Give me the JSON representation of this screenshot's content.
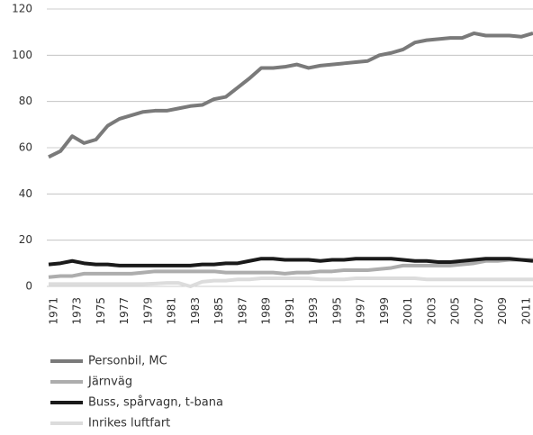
{
  "chart_data": {
    "type": "line",
    "x": [
      1971,
      1972,
      1973,
      1974,
      1975,
      1976,
      1977,
      1978,
      1979,
      1980,
      1981,
      1982,
      1983,
      1984,
      1985,
      1986,
      1987,
      1988,
      1989,
      1990,
      1991,
      1992,
      1993,
      1994,
      1995,
      1996,
      1997,
      1998,
      1999,
      2000,
      2001,
      2002,
      2003,
      2004,
      2005,
      2006,
      2007,
      2008,
      2009,
      2010,
      2011,
      2012
    ],
    "xlim": [
      1971,
      2012
    ],
    "xticks": [
      1971,
      1973,
      1975,
      1977,
      1979,
      1981,
      1983,
      1985,
      1987,
      1989,
      1991,
      1993,
      1995,
      1997,
      1999,
      2001,
      2003,
      2005,
      2007,
      2009,
      2011
    ],
    "ylim": [
      0,
      120
    ],
    "yticks": [
      0,
      20,
      40,
      60,
      80,
      100,
      120
    ],
    "grid": true,
    "legend": "bottom-left",
    "series": [
      {
        "name": "Personbil, MC",
        "color": "#7a7a7a",
        "values": [
          56,
          58.5,
          65,
          62,
          63.5,
          69.5,
          72.5,
          74,
          75.5,
          76,
          76,
          77,
          78,
          78.5,
          81,
          82,
          86,
          90,
          94.5,
          94.5,
          95,
          96,
          94.5,
          95.5,
          96,
          96.5,
          97,
          97.5,
          100,
          101,
          102.5,
          105.5,
          106.5,
          107,
          107.5,
          107.5,
          109.5,
          108.5,
          108.5,
          108.5,
          108,
          109.5
        ]
      },
      {
        "name": "Järnväg",
        "color": "#adadad",
        "values": [
          4,
          4.5,
          4.5,
          5.5,
          5.5,
          5.5,
          5.5,
          5.5,
          6,
          6.5,
          6.5,
          6.5,
          6.5,
          6.5,
          6.5,
          6,
          6,
          6,
          6,
          6,
          5.5,
          6,
          6,
          6.5,
          6.5,
          7,
          7,
          7,
          7.5,
          8,
          9,
          9,
          9,
          9,
          9,
          9.5,
          10,
          11,
          11,
          11.5,
          11.5,
          11.5
        ]
      },
      {
        "name": "Buss, spårvagn, t-bana",
        "color": "#1a1a1a",
        "values": [
          9.5,
          10,
          11,
          10,
          9.5,
          9.5,
          9,
          9,
          9,
          9,
          9,
          9,
          9,
          9.5,
          9.5,
          10,
          10,
          11,
          12,
          12,
          11.5,
          11.5,
          11.5,
          11,
          11.5,
          11.5,
          12,
          12,
          12,
          12,
          11.5,
          11,
          11,
          10.5,
          10.5,
          11,
          11.5,
          12,
          12,
          12,
          11.5,
          11
        ]
      },
      {
        "name": "Inrikes luftfart",
        "color": "#dcdcdc",
        "values": [
          1,
          1,
          1,
          1,
          1,
          1,
          1,
          1,
          1,
          1.2,
          1.5,
          1.5,
          0,
          2,
          2.5,
          2.5,
          3,
          3,
          3.5,
          3.5,
          3.5,
          3.5,
          3.5,
          3,
          3,
          3,
          3.5,
          3.5,
          3.5,
          3.5,
          3.5,
          3.5,
          3,
          3,
          3,
          3,
          3,
          3,
          3,
          3,
          3,
          3
        ]
      }
    ]
  }
}
